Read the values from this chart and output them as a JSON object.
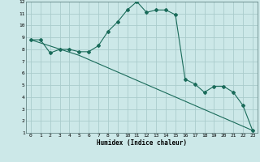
{
  "title": "",
  "xlabel": "Humidex (Indice chaleur)",
  "ylabel": "",
  "bg_color": "#cce8e8",
  "grid_color": "#aacccc",
  "line_color": "#1a6b5a",
  "xlim": [
    -0.5,
    23.5
  ],
  "ylim": [
    1,
    12
  ],
  "xticks": [
    0,
    1,
    2,
    3,
    4,
    5,
    6,
    7,
    8,
    9,
    10,
    11,
    12,
    13,
    14,
    15,
    16,
    17,
    18,
    19,
    20,
    21,
    22,
    23
  ],
  "yticks": [
    1,
    2,
    3,
    4,
    5,
    6,
    7,
    8,
    9,
    10,
    11,
    12
  ],
  "curve1_x": [
    0,
    1,
    2,
    3,
    4,
    5,
    6,
    7,
    8,
    9,
    10,
    11,
    12,
    13,
    14,
    15,
    16,
    17,
    18,
    19,
    20,
    21,
    22,
    23
  ],
  "curve1_y": [
    8.8,
    8.8,
    7.7,
    8.0,
    8.0,
    7.8,
    7.8,
    8.3,
    9.5,
    10.3,
    11.3,
    12.0,
    11.1,
    11.3,
    11.3,
    10.9,
    5.5,
    5.1,
    4.4,
    4.9,
    4.9,
    4.4,
    3.3,
    1.2
  ],
  "curve2_x": [
    0,
    5,
    23
  ],
  "curve2_y": [
    8.8,
    7.5,
    1.2
  ]
}
